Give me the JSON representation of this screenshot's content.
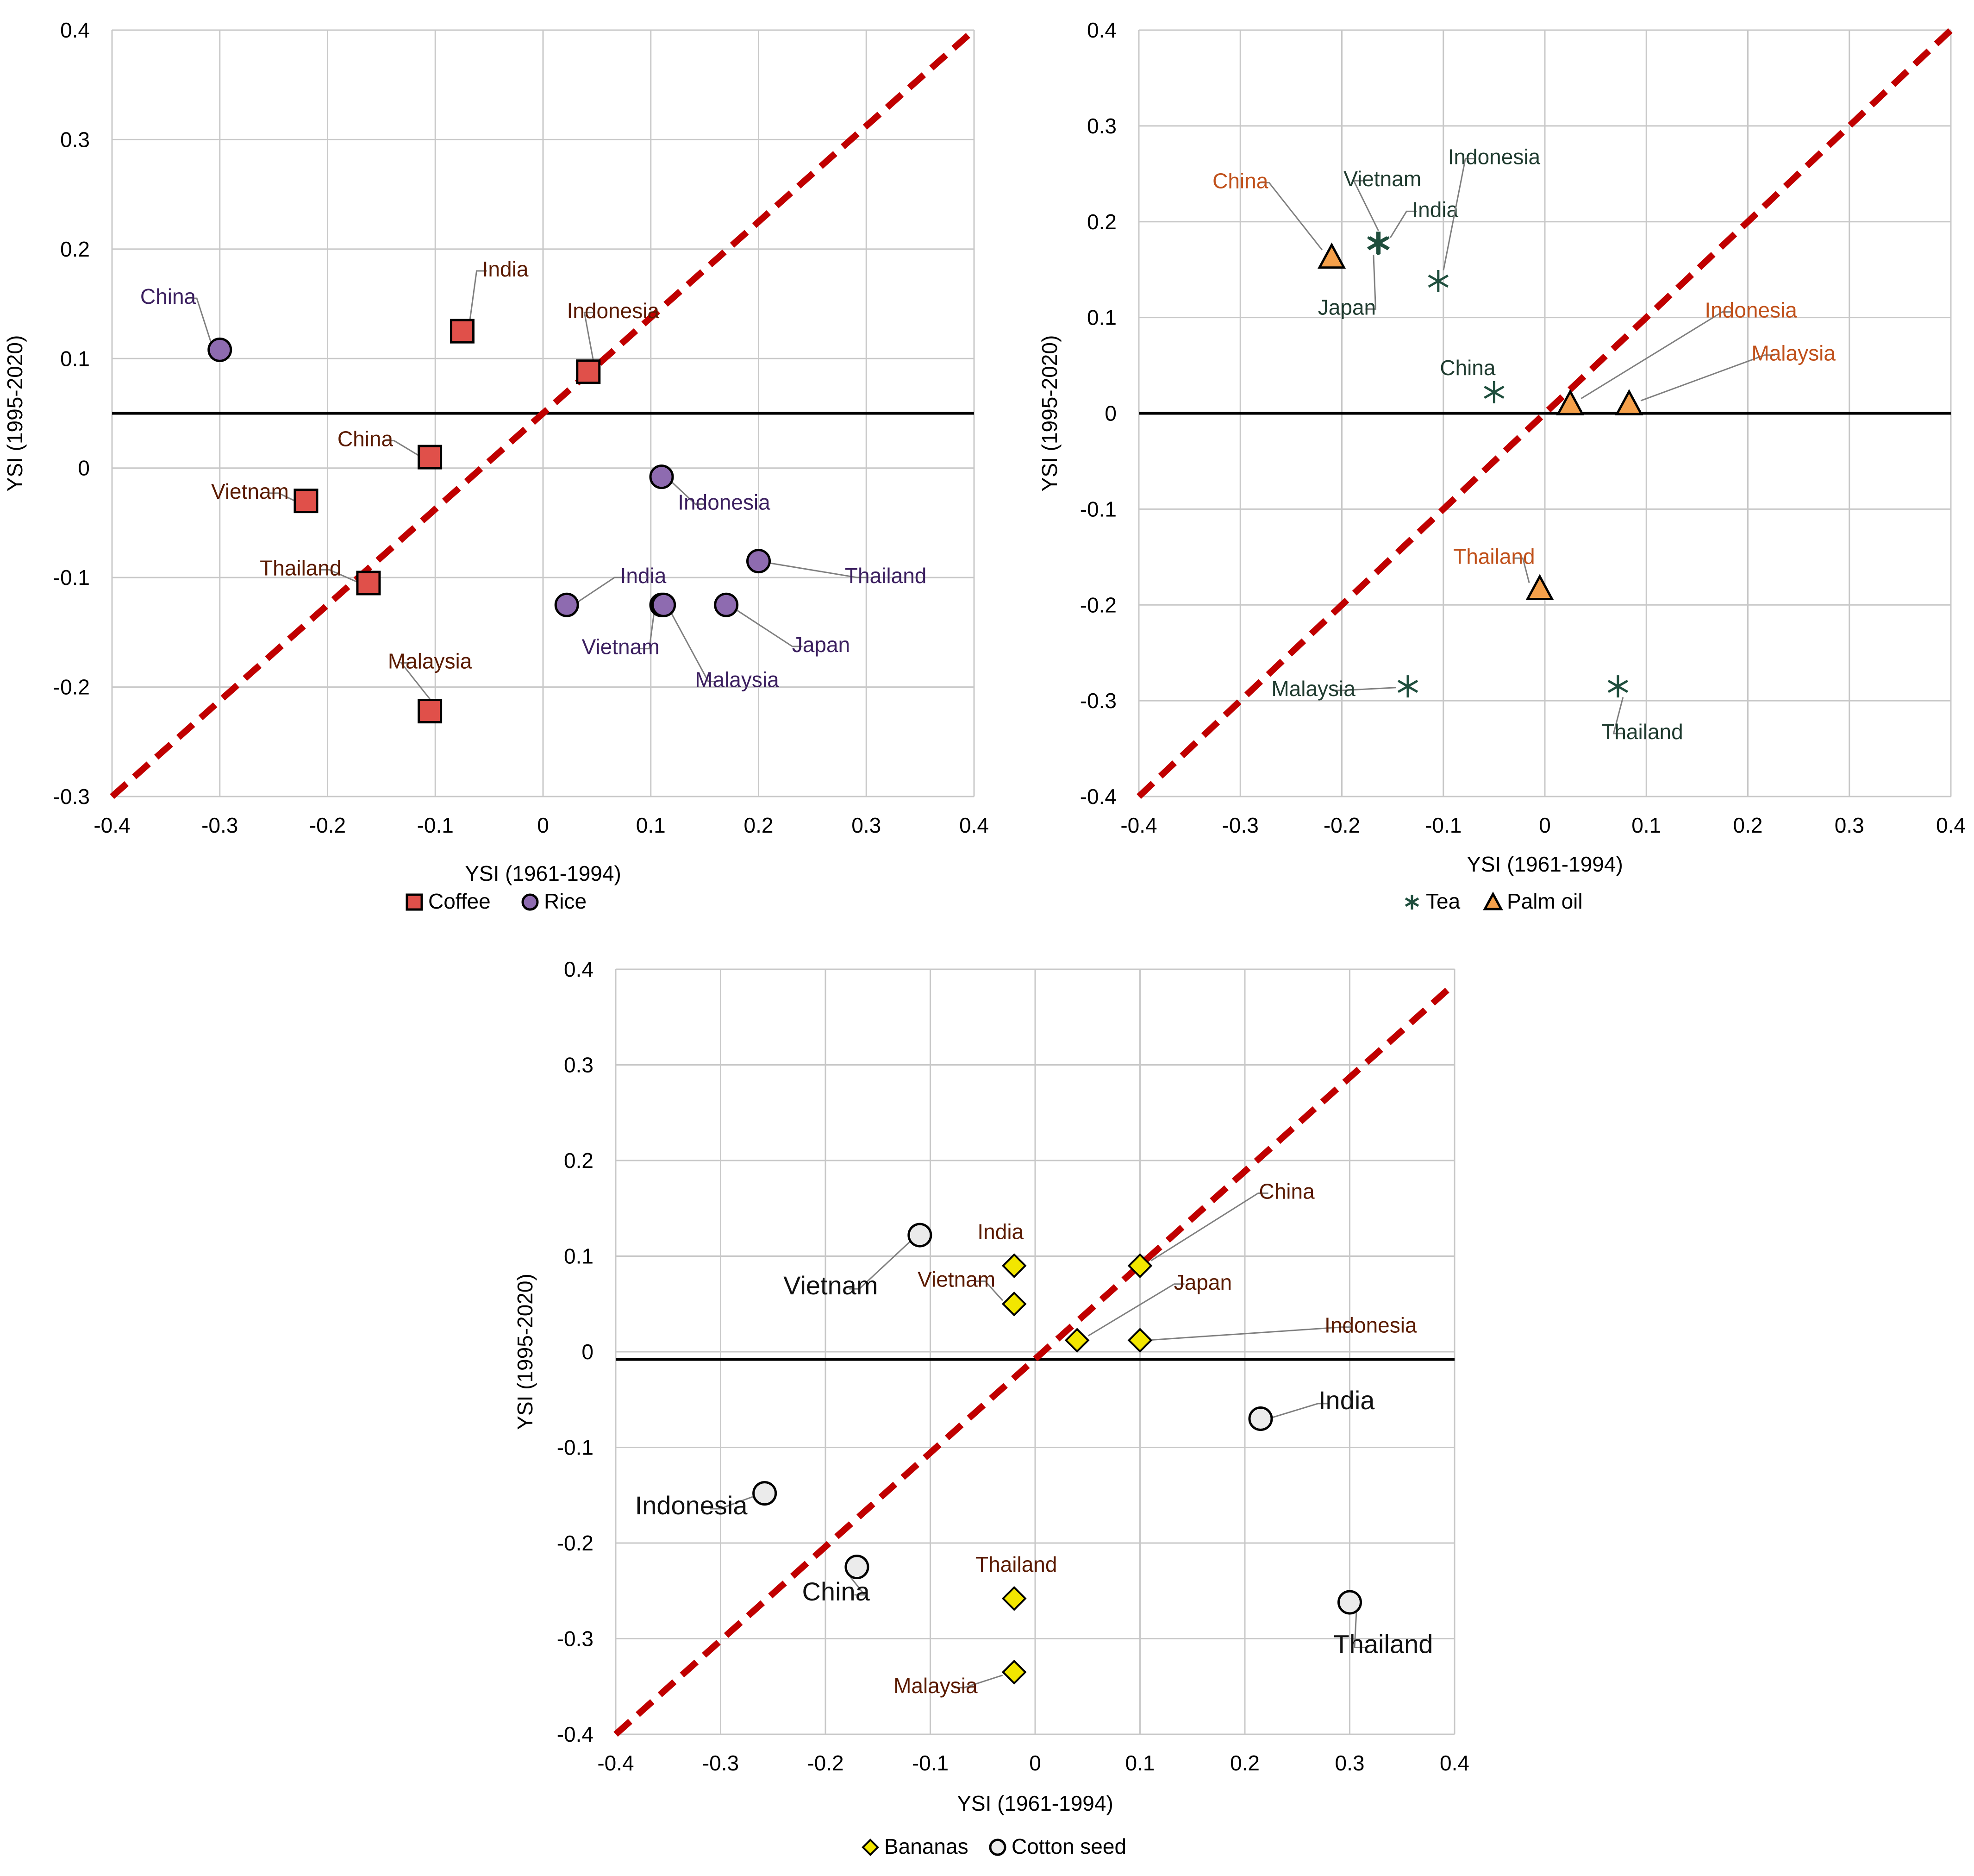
{
  "colors": {
    "grid": "#c8c8c8",
    "axis": "#000000",
    "diagonal": "#c00000",
    "coffee": "#e0504a",
    "rice": "#8e6bb0",
    "tea": "#1f4e3d",
    "palm_oil": "#f5a04a",
    "bananas": "#f2e600",
    "cotton_seed": "#ebebeb",
    "label_brown": "#5a1a00",
    "label_purple": "#3b1f5f",
    "label_green": "#1f3b2f",
    "label_orange": "#c0501a",
    "label_black": "#111111",
    "leader": "#808080"
  },
  "chart_data": [
    {
      "id": "coffee-rice",
      "type": "scatter",
      "xlabel": "YSI (1961-1994)",
      "ylabel": "YSI (1995-2020)",
      "xlim": [
        -0.4,
        0.4
      ],
      "ylim": [
        -0.3,
        0.4
      ],
      "xticks": [
        "-0.4",
        "-0.3",
        "-0.2",
        "-0.1",
        "0",
        "0.1",
        "0.2",
        "0.3",
        "0.4"
      ],
      "yticks": [
        "-0.3",
        "-0.2",
        "-0.1",
        "0",
        "0.1",
        "0.2",
        "0.3",
        "0.4"
      ],
      "horizontal_line_y": 0.05,
      "diagonal": [
        [
          -0.4,
          -0.3
        ],
        [
          0.4,
          0.4
        ]
      ],
      "legend": [
        {
          "label": "Coffee",
          "marker": "square",
          "color": "coffee"
        },
        {
          "label": "Rice",
          "marker": "circle",
          "color": "rice"
        }
      ],
      "series": [
        {
          "name": "Coffee",
          "marker": "square",
          "color": "coffee",
          "label_color": "label_brown",
          "points": [
            {
              "label": "India",
              "x": -0.075,
              "y": 0.125,
              "lx": -0.035,
              "ly": 0.175
            },
            {
              "label": "Indonesia",
              "x": 0.042,
              "y": 0.088,
              "lx": 0.065,
              "ly": 0.137
            },
            {
              "label": "China",
              "x": -0.105,
              "y": 0.01,
              "lx": -0.165,
              "ly": 0.02
            },
            {
              "label": "Vietnam",
              "x": -0.22,
              "y": -0.03,
              "lx": -0.272,
              "ly": -0.028
            },
            {
              "label": "Thailand",
              "x": -0.162,
              "y": -0.105,
              "lx": -0.225,
              "ly": -0.098
            },
            {
              "label": "Malaysia",
              "x": -0.105,
              "y": -0.222,
              "lx": -0.105,
              "ly": -0.183
            }
          ]
        },
        {
          "name": "Rice",
          "marker": "circle",
          "color": "rice",
          "label_color": "label_purple",
          "points": [
            {
              "label": "China",
              "x": -0.3,
              "y": 0.108,
              "lx": -0.348,
              "ly": 0.15
            },
            {
              "label": "Indonesia",
              "x": 0.11,
              "y": -0.008,
              "lx": 0.168,
              "ly": -0.038
            },
            {
              "label": "India",
              "x": 0.022,
              "y": -0.125,
              "lx": 0.093,
              "ly": -0.105
            },
            {
              "label": "Vietnam",
              "x": 0.11,
              "y": -0.125,
              "lx": 0.072,
              "ly": -0.17
            },
            {
              "label": "Malaysia",
              "x": 0.112,
              "y": -0.125,
              "lx": 0.18,
              "ly": -0.2
            },
            {
              "label": "Japan",
              "x": 0.17,
              "y": -0.125,
              "lx": 0.258,
              "ly": -0.168
            },
            {
              "label": "Thailand",
              "x": 0.2,
              "y": -0.085,
              "lx": 0.318,
              "ly": -0.105
            }
          ]
        }
      ]
    },
    {
      "id": "tea-palm-oil",
      "type": "scatter",
      "xlabel": "YSI (1961-1994)",
      "ylabel": "YSI (1995-2020)",
      "xlim": [
        -0.4,
        0.4
      ],
      "ylim": [
        -0.4,
        0.4
      ],
      "xticks": [
        "-0.4",
        "-0.3",
        "-0.2",
        "-0.1",
        "0",
        "0.1",
        "0.2",
        "0.3",
        "0.4"
      ],
      "yticks": [
        "-0.4",
        "-0.3",
        "-0.2",
        "-0.1",
        "0",
        "0.1",
        "0.2",
        "0.3",
        "0.4"
      ],
      "horizontal_line_y": 0,
      "diagonal": [
        [
          -0.4,
          -0.4
        ],
        [
          0.4,
          0.4
        ]
      ],
      "legend": [
        {
          "label": "Tea",
          "marker": "asterisk",
          "color": "tea"
        },
        {
          "label": "Palm oil",
          "marker": "triangle",
          "color": "palm_oil"
        }
      ],
      "series": [
        {
          "name": "Tea",
          "marker": "asterisk",
          "color": "tea",
          "label_color": "label_green",
          "points": [
            {
              "label": "Vietnam",
              "x": -0.165,
              "y": 0.178,
              "lx": -0.16,
              "ly": 0.237
            },
            {
              "label": "India",
              "x": -0.163,
              "y": 0.178,
              "lx": -0.108,
              "ly": 0.205
            },
            {
              "label": "Japan",
              "x": -0.164,
              "y": 0.177,
              "lx": -0.195,
              "ly": 0.103
            },
            {
              "label": "Indonesia",
              "x": -0.105,
              "y": 0.138,
              "lx": -0.05,
              "ly": 0.26
            },
            {
              "label": "China",
              "x": -0.05,
              "y": 0.022,
              "lx": -0.076,
              "ly": 0.04
            },
            {
              "label": "Malaysia",
              "x": -0.135,
              "y": -0.285,
              "lx": -0.228,
              "ly": -0.295
            },
            {
              "label": "Thailand",
              "x": 0.072,
              "y": -0.285,
              "lx": 0.096,
              "ly": -0.34
            }
          ]
        },
        {
          "name": "Palm oil",
          "marker": "triangle",
          "color": "palm_oil",
          "label_color": "label_orange",
          "points": [
            {
              "label": "China",
              "x": -0.21,
              "y": 0.163,
              "lx": -0.3,
              "ly": 0.235
            },
            {
              "label": "Indonesia",
              "x": 0.025,
              "y": 0.01,
              "lx": 0.203,
              "ly": 0.1
            },
            {
              "label": "Malaysia",
              "x": 0.083,
              "y": 0.01,
              "lx": 0.245,
              "ly": 0.055
            },
            {
              "label": "Thailand",
              "x": -0.005,
              "y": -0.183,
              "lx": -0.05,
              "ly": -0.157
            }
          ]
        }
      ]
    },
    {
      "id": "bananas-cotton-seed",
      "type": "scatter",
      "xlabel": "YSI (1961-1994)",
      "ylabel": "YSI (1995-2020)",
      "xlim": [
        -0.4,
        0.4
      ],
      "ylim": [
        -0.4,
        0.4
      ],
      "xticks": [
        "-0.4",
        "-0.3",
        "-0.2",
        "-0.1",
        "0",
        "0.1",
        "0.2",
        "0.3",
        "0.4"
      ],
      "yticks": [
        "-0.4",
        "-0.3",
        "-0.2",
        "-0.1",
        "0",
        "0.1",
        "0.2",
        "0.3",
        "0.4"
      ],
      "horizontal_line_y": -0.008,
      "diagonal": [
        [
          -0.4,
          -0.4
        ],
        [
          0.4,
          0.385
        ]
      ],
      "legend": [
        {
          "label": "Bananas",
          "marker": "diamond",
          "color": "bananas"
        },
        {
          "label": "Cotton seed",
          "marker": "circle",
          "color": "cotton_seed"
        }
      ],
      "series": [
        {
          "name": "Bananas",
          "marker": "diamond",
          "color": "bananas",
          "label_color": "label_brown",
          "points": [
            {
              "label": "India",
              "x": -0.02,
              "y": 0.09,
              "lx": -0.033,
              "ly": 0.118
            },
            {
              "label": "Vietnam",
              "x": -0.02,
              "y": 0.05,
              "lx": -0.075,
              "ly": 0.068
            },
            {
              "label": "China",
              "x": 0.1,
              "y": 0.09,
              "lx": 0.24,
              "ly": 0.16
            },
            {
              "label": "Japan",
              "x": 0.04,
              "y": 0.012,
              "lx": 0.16,
              "ly": 0.065
            },
            {
              "label": "Indonesia",
              "x": 0.1,
              "y": 0.012,
              "lx": 0.32,
              "ly": 0.02
            },
            {
              "label": "Thailand",
              "x": -0.02,
              "y": -0.258,
              "lx": -0.018,
              "ly": -0.23
            },
            {
              "label": "Malaysia",
              "x": -0.02,
              "y": -0.335,
              "lx": -0.095,
              "ly": -0.357
            }
          ]
        },
        {
          "name": "Cotton seed",
          "marker": "circle",
          "color": "cotton_seed",
          "label_color": "label_black",
          "points": [
            {
              "label": "Vietnam",
              "x": -0.11,
              "y": 0.122,
              "lx": -0.195,
              "ly": 0.06
            },
            {
              "label": "India",
              "x": 0.215,
              "y": -0.07,
              "lx": 0.297,
              "ly": -0.06
            },
            {
              "label": "Indonesia",
              "x": -0.258,
              "y": -0.148,
              "lx": -0.328,
              "ly": -0.17
            },
            {
              "label": "China",
              "x": -0.17,
              "y": -0.225,
              "lx": -0.19,
              "ly": -0.26
            },
            {
              "label": "Thailand",
              "x": 0.3,
              "y": -0.262,
              "lx": 0.332,
              "ly": -0.315
            }
          ]
        }
      ]
    }
  ]
}
